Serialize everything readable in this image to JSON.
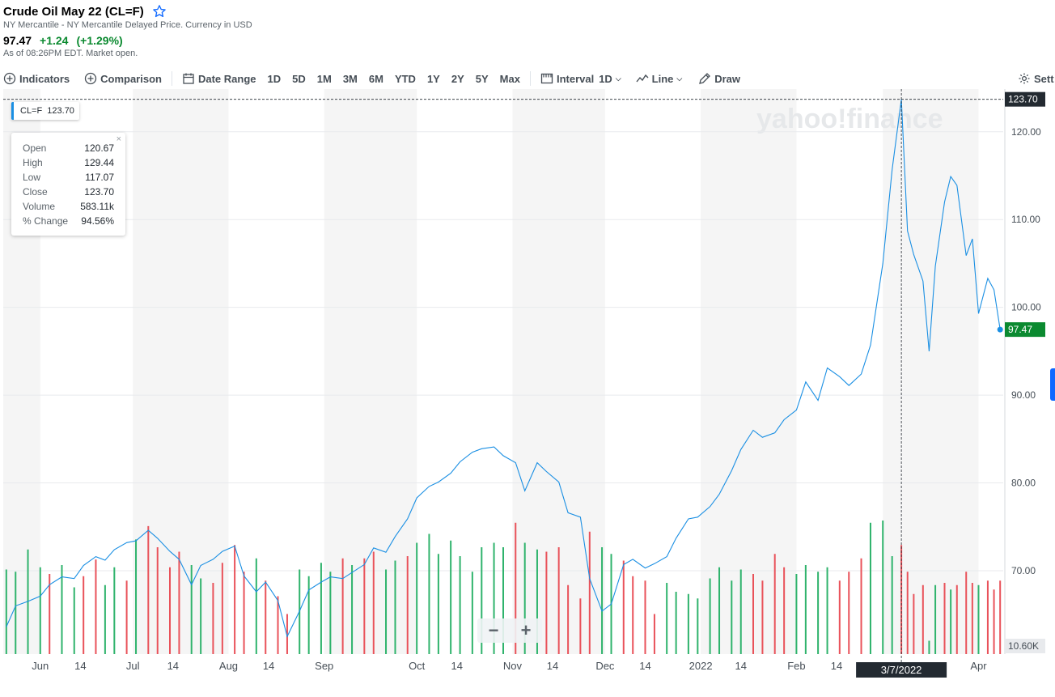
{
  "header": {
    "title": "Crude Oil May 22 (CL=F)",
    "subtitle": "NY Mercantile - NY Mercantile Delayed Price. Currency in USD",
    "price": "97.47",
    "change": "+1.24",
    "change_pct": "(+1.29%)",
    "as_of": "As of 08:26PM EDT. Market open."
  },
  "toolbar": {
    "indicators": "Indicators",
    "comparison": "Comparison",
    "date_range": "Date Range",
    "ranges": [
      "1D",
      "5D",
      "1M",
      "3M",
      "6M",
      "YTD",
      "1Y",
      "2Y",
      "5Y",
      "Max"
    ],
    "interval_label": "Interval",
    "interval_value": "1D",
    "chart_type": "Line",
    "draw": "Draw",
    "settings": "Sett"
  },
  "colors": {
    "line": "#1a8fe3",
    "up": "#2fb36c",
    "down": "#e9525a",
    "price_badge": "#0b8a30",
    "cross_badge": "#232a31"
  },
  "series_tag": {
    "symbol": "CL=F",
    "value": "123.70"
  },
  "tooltip": {
    "rows": [
      {
        "label": "Open",
        "value": "120.67"
      },
      {
        "label": "High",
        "value": "129.44"
      },
      {
        "label": "Low",
        "value": "117.07"
      },
      {
        "label": "Close",
        "value": "123.70"
      },
      {
        "label": "Volume",
        "value": "583.11k"
      },
      {
        "label": "% Change",
        "value": "94.56%"
      }
    ],
    "close": "×"
  },
  "watermark": "yahoo!finance",
  "zoom": {
    "minus": "−",
    "plus": "+"
  },
  "chart_data": {
    "type": "line",
    "ylim": [
      60.5,
      124.5
    ],
    "y_ticks": [
      70,
      80,
      90,
      100,
      110,
      120
    ],
    "y_tick_labels": [
      "70.00",
      "80.00",
      "90.00",
      "100.00",
      "110.00",
      "120.00"
    ],
    "x_tick_labels": [
      "Jun",
      "14",
      "Jul",
      "14",
      "Aug",
      "14",
      "Sep",
      "Oct",
      "14",
      "Nov",
      "14",
      "Dec",
      "14",
      "2022",
      "14",
      "Feb",
      "14",
      "Apr"
    ],
    "crosshair_value": "123.70",
    "crosshair_date": "3/7/2022",
    "last_price": "97.47",
    "volume_label": "10.60K",
    "price": [
      {
        "x": "2021-05-21",
        "y": 63.6
      },
      {
        "x": "2021-05-24",
        "y": 66.0
      },
      {
        "x": "2021-05-28",
        "y": 66.5
      },
      {
        "x": "2021-06-01",
        "y": 67.1
      },
      {
        "x": "2021-06-04",
        "y": 68.4
      },
      {
        "x": "2021-06-08",
        "y": 69.3
      },
      {
        "x": "2021-06-12",
        "y": 69.1
      },
      {
        "x": "2021-06-15",
        "y": 70.6
      },
      {
        "x": "2021-06-19",
        "y": 71.6
      },
      {
        "x": "2021-06-22",
        "y": 71.2
      },
      {
        "x": "2021-06-25",
        "y": 72.4
      },
      {
        "x": "2021-06-29",
        "y": 73.2
      },
      {
        "x": "2021-07-02",
        "y": 73.4
      },
      {
        "x": "2021-07-06",
        "y": 74.6
      },
      {
        "x": "2021-07-09",
        "y": 73.7
      },
      {
        "x": "2021-07-13",
        "y": 72.2
      },
      {
        "x": "2021-07-16",
        "y": 71.3
      },
      {
        "x": "2021-07-20",
        "y": 68.4
      },
      {
        "x": "2021-07-23",
        "y": 70.6
      },
      {
        "x": "2021-07-27",
        "y": 71.3
      },
      {
        "x": "2021-07-30",
        "y": 72.2
      },
      {
        "x": "2021-08-03",
        "y": 72.8
      },
      {
        "x": "2021-08-06",
        "y": 69.4
      },
      {
        "x": "2021-08-10",
        "y": 67.6
      },
      {
        "x": "2021-08-13",
        "y": 68.7
      },
      {
        "x": "2021-08-17",
        "y": 66.6
      },
      {
        "x": "2021-08-20",
        "y": 62.5
      },
      {
        "x": "2021-08-24",
        "y": 65.4
      },
      {
        "x": "2021-08-27",
        "y": 67.8
      },
      {
        "x": "2021-08-31",
        "y": 68.7
      },
      {
        "x": "2021-09-03",
        "y": 69.3
      },
      {
        "x": "2021-09-07",
        "y": 69.1
      },
      {
        "x": "2021-09-10",
        "y": 69.8
      },
      {
        "x": "2021-09-14",
        "y": 70.7
      },
      {
        "x": "2021-09-17",
        "y": 72.6
      },
      {
        "x": "2021-09-21",
        "y": 72.1
      },
      {
        "x": "2021-09-24",
        "y": 73.9
      },
      {
        "x": "2021-09-28",
        "y": 75.9
      },
      {
        "x": "2021-10-01",
        "y": 78.3
      },
      {
        "x": "2021-10-05",
        "y": 79.6
      },
      {
        "x": "2021-10-08",
        "y": 80.1
      },
      {
        "x": "2021-10-12",
        "y": 81.1
      },
      {
        "x": "2021-10-15",
        "y": 82.4
      },
      {
        "x": "2021-10-19",
        "y": 83.5
      },
      {
        "x": "2021-10-22",
        "y": 83.9
      },
      {
        "x": "2021-10-26",
        "y": 84.1
      },
      {
        "x": "2021-10-29",
        "y": 83.1
      },
      {
        "x": "2021-11-02",
        "y": 82.3
      },
      {
        "x": "2021-11-05",
        "y": 79.1
      },
      {
        "x": "2021-11-09",
        "y": 82.3
      },
      {
        "x": "2021-11-12",
        "y": 81.3
      },
      {
        "x": "2021-11-16",
        "y": 80.1
      },
      {
        "x": "2021-11-19",
        "y": 76.6
      },
      {
        "x": "2021-11-23",
        "y": 76.1
      },
      {
        "x": "2021-11-26",
        "y": 69.1
      },
      {
        "x": "2021-11-30",
        "y": 65.4
      },
      {
        "x": "2021-12-03",
        "y": 66.2
      },
      {
        "x": "2021-12-07",
        "y": 70.7
      },
      {
        "x": "2021-12-10",
        "y": 71.3
      },
      {
        "x": "2021-12-14",
        "y": 70.3
      },
      {
        "x": "2021-12-17",
        "y": 70.8
      },
      {
        "x": "2021-12-21",
        "y": 71.6
      },
      {
        "x": "2021-12-24",
        "y": 73.7
      },
      {
        "x": "2021-12-28",
        "y": 75.9
      },
      {
        "x": "2021-12-31",
        "y": 76.1
      },
      {
        "x": "2022-01-04",
        "y": 77.3
      },
      {
        "x": "2022-01-07",
        "y": 78.7
      },
      {
        "x": "2022-01-11",
        "y": 81.4
      },
      {
        "x": "2022-01-14",
        "y": 83.8
      },
      {
        "x": "2022-01-18",
        "y": 86.0
      },
      {
        "x": "2022-01-21",
        "y": 85.2
      },
      {
        "x": "2022-01-25",
        "y": 85.7
      },
      {
        "x": "2022-01-28",
        "y": 87.2
      },
      {
        "x": "2022-02-01",
        "y": 88.3
      },
      {
        "x": "2022-02-04",
        "y": 91.5
      },
      {
        "x": "2022-02-08",
        "y": 89.4
      },
      {
        "x": "2022-02-11",
        "y": 93.1
      },
      {
        "x": "2022-02-15",
        "y": 92.1
      },
      {
        "x": "2022-02-18",
        "y": 91.1
      },
      {
        "x": "2022-02-22",
        "y": 92.4
      },
      {
        "x": "2022-02-25",
        "y": 95.7
      },
      {
        "x": "2022-03-01",
        "y": 105.0
      },
      {
        "x": "2022-03-04",
        "y": 115.7
      },
      {
        "x": "2022-03-07",
        "y": 123.7
      },
      {
        "x": "2022-03-09",
        "y": 108.7
      },
      {
        "x": "2022-03-11",
        "y": 106.0
      },
      {
        "x": "2022-03-14",
        "y": 103.0
      },
      {
        "x": "2022-03-16",
        "y": 95.0
      },
      {
        "x": "2022-03-18",
        "y": 104.7
      },
      {
        "x": "2022-03-21",
        "y": 112.0
      },
      {
        "x": "2022-03-23",
        "y": 114.9
      },
      {
        "x": "2022-03-25",
        "y": 113.9
      },
      {
        "x": "2022-03-28",
        "y": 105.9
      },
      {
        "x": "2022-03-30",
        "y": 107.8
      },
      {
        "x": "2022-04-01",
        "y": 99.3
      },
      {
        "x": "2022-04-04",
        "y": 103.3
      },
      {
        "x": "2022-04-06",
        "y": 102.0
      },
      {
        "x": "2022-04-08",
        "y": 97.47
      }
    ],
    "volume": [
      {
        "x": "2021-05-21",
        "v": 0.76,
        "d": "up"
      },
      {
        "x": "2021-05-24",
        "v": 0.74,
        "d": "up"
      },
      {
        "x": "2021-05-28",
        "v": 0.94,
        "d": "up"
      },
      {
        "x": "2021-06-01",
        "v": 0.78,
        "d": "up"
      },
      {
        "x": "2021-06-04",
        "v": 0.72,
        "d": "down"
      },
      {
        "x": "2021-06-08",
        "v": 0.8,
        "d": "up"
      },
      {
        "x": "2021-06-12",
        "v": 0.6,
        "d": "up"
      },
      {
        "x": "2021-06-15",
        "v": 0.7,
        "d": "down"
      },
      {
        "x": "2021-06-19",
        "v": 0.85,
        "d": "down"
      },
      {
        "x": "2021-06-22",
        "v": 0.62,
        "d": "up"
      },
      {
        "x": "2021-06-25",
        "v": 0.78,
        "d": "up"
      },
      {
        "x": "2021-06-29",
        "v": 0.66,
        "d": "down"
      },
      {
        "x": "2021-07-02",
        "v": 1.03,
        "d": "up"
      },
      {
        "x": "2021-07-06",
        "v": 1.15,
        "d": "down"
      },
      {
        "x": "2021-07-09",
        "v": 0.96,
        "d": "down"
      },
      {
        "x": "2021-07-13",
        "v": 0.78,
        "d": "down"
      },
      {
        "x": "2021-07-16",
        "v": 0.92,
        "d": "down"
      },
      {
        "x": "2021-07-20",
        "v": 0.8,
        "d": "up"
      },
      {
        "x": "2021-07-23",
        "v": 0.68,
        "d": "up"
      },
      {
        "x": "2021-07-27",
        "v": 0.64,
        "d": "down"
      },
      {
        "x": "2021-07-30",
        "v": 0.82,
        "d": "down"
      },
      {
        "x": "2021-08-03",
        "v": 0.98,
        "d": "down"
      },
      {
        "x": "2021-08-06",
        "v": 0.74,
        "d": "down"
      },
      {
        "x": "2021-08-10",
        "v": 0.86,
        "d": "up"
      },
      {
        "x": "2021-08-13",
        "v": 0.66,
        "d": "down"
      },
      {
        "x": "2021-08-17",
        "v": 0.52,
        "d": "down"
      },
      {
        "x": "2021-08-20",
        "v": 0.36,
        "d": "down"
      },
      {
        "x": "2021-08-24",
        "v": 0.76,
        "d": "up"
      },
      {
        "x": "2021-08-27",
        "v": 0.7,
        "d": "up"
      },
      {
        "x": "2021-08-31",
        "v": 0.82,
        "d": "up"
      },
      {
        "x": "2021-09-03",
        "v": 0.74,
        "d": "up"
      },
      {
        "x": "2021-09-07",
        "v": 0.86,
        "d": "down"
      },
      {
        "x": "2021-09-10",
        "v": 0.8,
        "d": "up"
      },
      {
        "x": "2021-09-14",
        "v": 0.86,
        "d": "down"
      },
      {
        "x": "2021-09-17",
        "v": 0.92,
        "d": "down"
      },
      {
        "x": "2021-09-21",
        "v": 0.76,
        "d": "up"
      },
      {
        "x": "2021-09-24",
        "v": 0.84,
        "d": "up"
      },
      {
        "x": "2021-09-28",
        "v": 0.88,
        "d": "down"
      },
      {
        "x": "2021-10-01",
        "v": 1.0,
        "d": "up"
      },
      {
        "x": "2021-10-05",
        "v": 1.08,
        "d": "up"
      },
      {
        "x": "2021-10-08",
        "v": 0.9,
        "d": "up"
      },
      {
        "x": "2021-10-12",
        "v": 1.02,
        "d": "up"
      },
      {
        "x": "2021-10-15",
        "v": 0.88,
        "d": "up"
      },
      {
        "x": "2021-10-19",
        "v": 0.74,
        "d": "up"
      },
      {
        "x": "2021-10-22",
        "v": 0.96,
        "d": "up"
      },
      {
        "x": "2021-10-26",
        "v": 1.0,
        "d": "up"
      },
      {
        "x": "2021-10-29",
        "v": 0.96,
        "d": "up"
      },
      {
        "x": "2021-11-02",
        "v": 1.18,
        "d": "down"
      },
      {
        "x": "2021-11-05",
        "v": 1.0,
        "d": "up"
      },
      {
        "x": "2021-11-09",
        "v": 0.94,
        "d": "up"
      },
      {
        "x": "2021-11-12",
        "v": 0.92,
        "d": "down"
      },
      {
        "x": "2021-11-16",
        "v": 0.96,
        "d": "down"
      },
      {
        "x": "2021-11-19",
        "v": 0.62,
        "d": "down"
      },
      {
        "x": "2021-11-23",
        "v": 0.5,
        "d": "down"
      },
      {
        "x": "2021-11-26",
        "v": 1.1,
        "d": "down"
      },
      {
        "x": "2021-11-30",
        "v": 0.96,
        "d": "up"
      },
      {
        "x": "2021-12-03",
        "v": 0.9,
        "d": "up"
      },
      {
        "x": "2021-12-07",
        "v": 0.84,
        "d": "down"
      },
      {
        "x": "2021-12-10",
        "v": 0.7,
        "d": "down"
      },
      {
        "x": "2021-12-14",
        "v": 0.66,
        "d": "down"
      },
      {
        "x": "2021-12-17",
        "v": 0.36,
        "d": "down"
      },
      {
        "x": "2021-12-21",
        "v": 0.64,
        "d": "up"
      },
      {
        "x": "2021-12-24",
        "v": 0.56,
        "d": "up"
      },
      {
        "x": "2021-12-28",
        "v": 0.54,
        "d": "up"
      },
      {
        "x": "2021-12-31",
        "v": 0.5,
        "d": "up"
      },
      {
        "x": "2022-01-04",
        "v": 0.68,
        "d": "up"
      },
      {
        "x": "2022-01-07",
        "v": 0.78,
        "d": "up"
      },
      {
        "x": "2022-01-11",
        "v": 0.66,
        "d": "up"
      },
      {
        "x": "2022-01-14",
        "v": 0.76,
        "d": "up"
      },
      {
        "x": "2022-01-18",
        "v": 0.72,
        "d": "down"
      },
      {
        "x": "2022-01-21",
        "v": 0.66,
        "d": "down"
      },
      {
        "x": "2022-01-25",
        "v": 0.9,
        "d": "down"
      },
      {
        "x": "2022-01-28",
        "v": 0.78,
        "d": "down"
      },
      {
        "x": "2022-02-01",
        "v": 0.72,
        "d": "up"
      },
      {
        "x": "2022-02-04",
        "v": 0.8,
        "d": "up"
      },
      {
        "x": "2022-02-08",
        "v": 0.74,
        "d": "up"
      },
      {
        "x": "2022-02-11",
        "v": 0.78,
        "d": "up"
      },
      {
        "x": "2022-02-15",
        "v": 0.66,
        "d": "down"
      },
      {
        "x": "2022-02-18",
        "v": 0.74,
        "d": "down"
      },
      {
        "x": "2022-02-22",
        "v": 0.86,
        "d": "down"
      },
      {
        "x": "2022-02-25",
        "v": 1.18,
        "d": "up"
      },
      {
        "x": "2022-03-01",
        "v": 1.2,
        "d": "up"
      },
      {
        "x": "2022-03-04",
        "v": 0.88,
        "d": "up"
      },
      {
        "x": "2022-03-07",
        "v": 0.98,
        "d": "down"
      },
      {
        "x": "2022-03-09",
        "v": 0.74,
        "d": "down"
      },
      {
        "x": "2022-03-11",
        "v": 0.54,
        "d": "down"
      },
      {
        "x": "2022-03-14",
        "v": 0.62,
        "d": "down"
      },
      {
        "x": "2022-03-16",
        "v": 0.12,
        "d": "up"
      },
      {
        "x": "2022-03-18",
        "v": 0.62,
        "d": "up"
      },
      {
        "x": "2022-03-21",
        "v": 0.64,
        "d": "down"
      },
      {
        "x": "2022-03-23",
        "v": 0.58,
        "d": "up"
      },
      {
        "x": "2022-03-25",
        "v": 0.62,
        "d": "down"
      },
      {
        "x": "2022-03-28",
        "v": 0.74,
        "d": "down"
      },
      {
        "x": "2022-03-30",
        "v": 0.64,
        "d": "down"
      },
      {
        "x": "2022-04-01",
        "v": 0.62,
        "d": "up"
      },
      {
        "x": "2022-04-04",
        "v": 0.66,
        "d": "down"
      },
      {
        "x": "2022-04-06",
        "v": 0.58,
        "d": "down"
      },
      {
        "x": "2022-04-08",
        "v": 0.66,
        "d": "down"
      }
    ]
  }
}
